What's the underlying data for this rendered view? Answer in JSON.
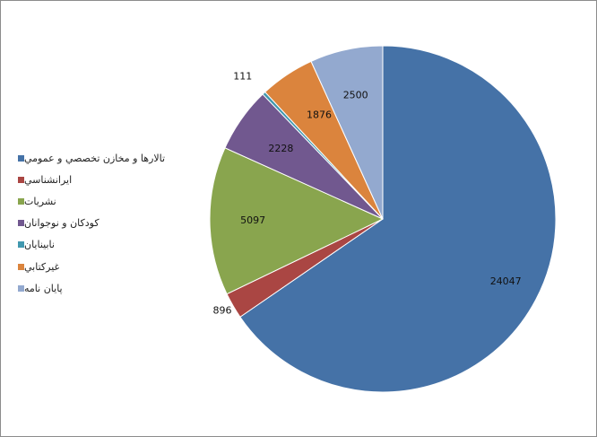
{
  "chart_data": {
    "type": "pie",
    "title": "",
    "start_angle_deg": 0,
    "direction": "clockwise",
    "legend_placement": "left",
    "categories": [
      "تالارها و مخازن تخصصي و عمومي",
      "ايرانشناسي",
      "نشريات",
      "كودكان و نوجوانان",
      "نابينايان",
      "غيركتابي",
      "پايان نامه"
    ],
    "values": [
      24047,
      896,
      5097,
      2228,
      111,
      1876,
      2500
    ],
    "value_labels": [
      "24047",
      "896",
      "5097",
      "2228",
      "111",
      "1876",
      "2500"
    ],
    "colors": [
      "#4572a7",
      "#aa4643",
      "#89a54e",
      "#71588f",
      "#4198af",
      "#db843d",
      "#93a9cf"
    ]
  }
}
